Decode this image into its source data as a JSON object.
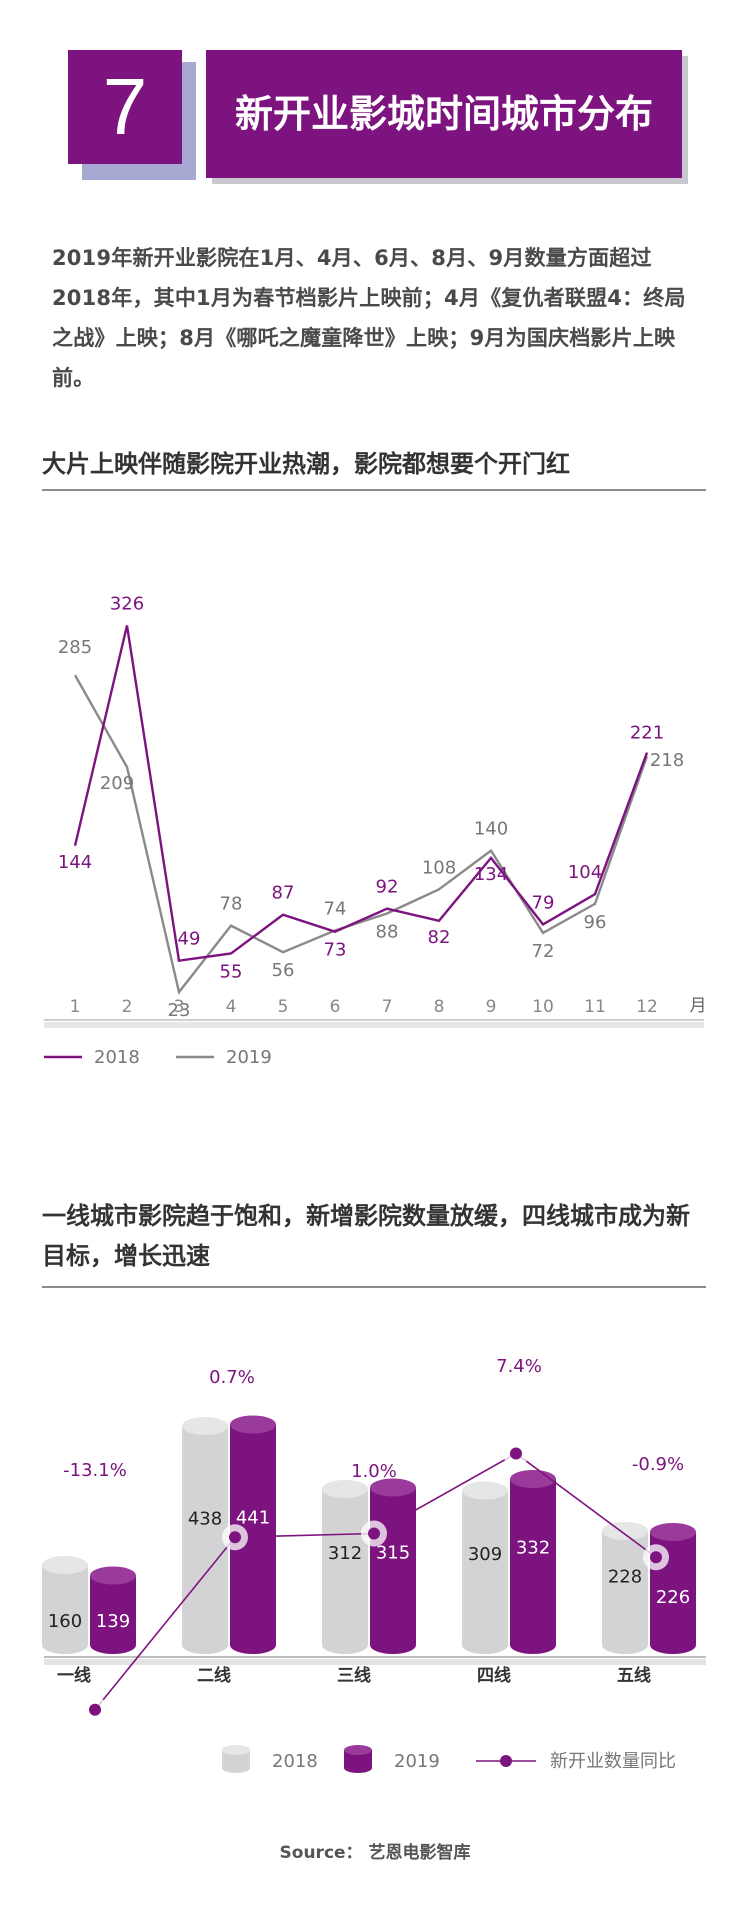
{
  "header": {
    "number": "7",
    "title": "新开业影城时间城市分布"
  },
  "intro": "2019年新开业影院在1月、4月、6月、8月、9月数量方面超过2018年，其中1月为春节档影片上映前；4月《复仇者联盟4：终局之战》上映；8月《哪吒之魔童降世》上映；9月为国庆档影片上映前。",
  "section1": {
    "title": "大片上映伴随影院开业热潮，影院都想要个开门红"
  },
  "section2": {
    "title": "一线城市影院趋于饱和，新增影院数量放缓，四线城市成为新目标，增长迅速"
  },
  "chart_data": [
    {
      "type": "line",
      "title": "大片上映伴随影院开业热潮，影院都想要个开门红",
      "x": [
        "1",
        "2",
        "3",
        "4",
        "5",
        "6",
        "7",
        "8",
        "9",
        "10",
        "11",
        "12"
      ],
      "xunit": "月",
      "series": [
        {
          "name": "2018",
          "color": "#7d137f",
          "values": [
            144,
            326,
            49,
            55,
            87,
            73,
            92,
            82,
            134,
            79,
            104,
            221
          ]
        },
        {
          "name": "2019",
          "color": "#8a8a8a",
          "values": [
            285,
            209,
            23,
            78,
            56,
            74,
            88,
            108,
            140,
            72,
            96,
            218
          ]
        }
      ]
    },
    {
      "type": "bar",
      "title": "一线城市影院趋于饱和，新增影院数量放缓，四线城市成为新目标，增长迅速",
      "categories": [
        "一线",
        "二线",
        "三线",
        "四线",
        "五线"
      ],
      "series": [
        {
          "name": "2018",
          "color": "#d3d3d6",
          "values": [
            160,
            438,
            312,
            309,
            228
          ]
        },
        {
          "name": "2019",
          "color": "#7d137f",
          "values": [
            139,
            441,
            315,
            332,
            226
          ]
        }
      ],
      "line_series": {
        "name": "新开业数量同比",
        "color": "#7d137f",
        "values": [
          -13.1,
          0.7,
          1.0,
          7.4,
          -0.9
        ],
        "labels": [
          "-13.1%",
          "0.7%",
          "1.0%",
          "7.4%",
          "-0.9%"
        ]
      }
    }
  ],
  "source": "Source： 艺恩电影智库"
}
